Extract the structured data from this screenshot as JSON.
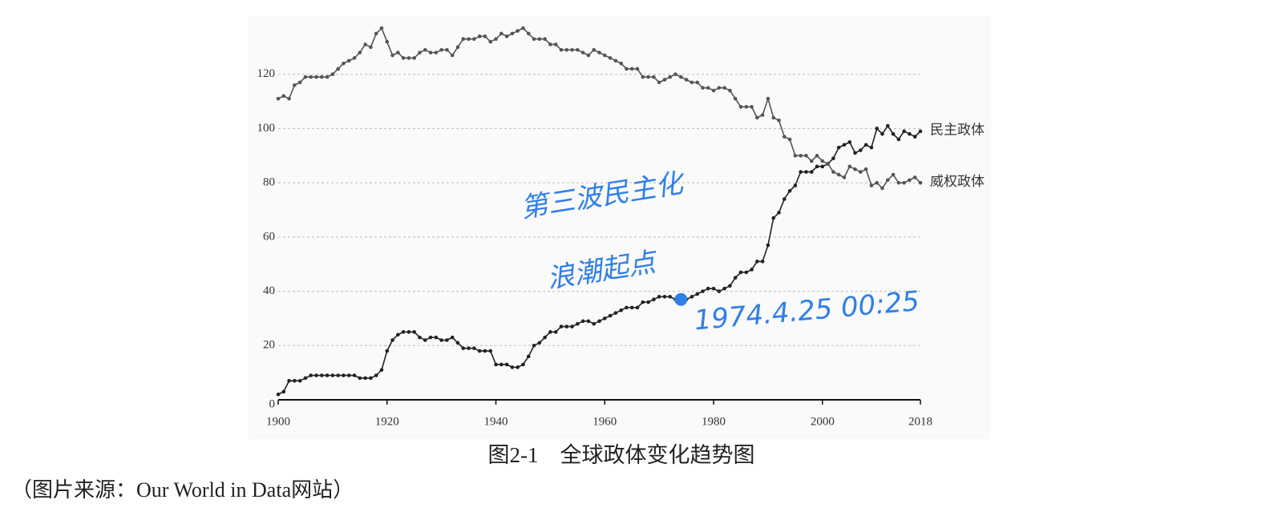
{
  "chart_data": {
    "type": "line",
    "x": [
      1900,
      1901,
      1902,
      1903,
      1904,
      1905,
      1906,
      1907,
      1908,
      1909,
      1910,
      1911,
      1912,
      1913,
      1914,
      1915,
      1916,
      1917,
      1918,
      1919,
      1920,
      1921,
      1922,
      1923,
      1924,
      1925,
      1926,
      1927,
      1928,
      1929,
      1930,
      1931,
      1932,
      1933,
      1934,
      1935,
      1936,
      1937,
      1938,
      1939,
      1940,
      1941,
      1942,
      1943,
      1944,
      1945,
      1946,
      1947,
      1948,
      1949,
      1950,
      1951,
      1952,
      1953,
      1954,
      1955,
      1956,
      1957,
      1958,
      1959,
      1960,
      1961,
      1962,
      1963,
      1964,
      1965,
      1966,
      1967,
      1968,
      1969,
      1970,
      1971,
      1972,
      1973,
      1974,
      1975,
      1976,
      1977,
      1978,
      1979,
      1980,
      1981,
      1982,
      1983,
      1984,
      1985,
      1986,
      1987,
      1988,
      1989,
      1990,
      1991,
      1992,
      1993,
      1994,
      1995,
      1996,
      1997,
      1998,
      1999,
      2000,
      2001,
      2002,
      2003,
      2004,
      2005,
      2006,
      2007,
      2008,
      2009,
      2010,
      2011,
      2012,
      2013,
      2014,
      2015,
      2016,
      2017,
      2018
    ],
    "series": [
      {
        "name": "民主政体",
        "color": "#222222",
        "values": [
          2,
          3,
          7,
          7,
          7,
          8,
          9,
          9,
          9,
          9,
          9,
          9,
          9,
          9,
          9,
          8,
          8,
          8,
          9,
          11,
          18,
          22,
          24,
          25,
          25,
          25,
          23,
          22,
          23,
          23,
          22,
          22,
          23,
          21,
          19,
          19,
          19,
          18,
          18,
          18,
          13,
          13,
          13,
          12,
          12,
          13,
          16,
          20,
          21,
          23,
          25,
          25,
          27,
          27,
          27,
          28,
          29,
          29,
          28,
          29,
          30,
          31,
          32,
          33,
          34,
          34,
          34,
          36,
          36,
          37,
          38,
          38,
          38,
          37,
          38,
          37,
          38,
          39,
          40,
          41,
          41,
          40,
          41,
          42,
          45,
          47,
          47,
          48,
          51,
          51,
          57,
          67,
          69,
          74,
          77,
          79,
          84,
          84,
          84,
          86,
          86,
          87,
          89,
          93,
          94,
          95,
          91,
          92,
          94,
          93,
          100,
          98,
          101,
          98,
          96,
          99,
          98,
          97,
          99
        ]
      },
      {
        "name": "威权政体",
        "color": "#555555",
        "values": [
          111,
          112,
          111,
          116,
          117,
          119,
          119,
          119,
          119,
          119,
          120,
          122,
          124,
          125,
          126,
          128,
          131,
          130,
          135,
          137,
          132,
          127,
          128,
          126,
          126,
          126,
          128,
          129,
          128,
          128,
          129,
          129,
          127,
          130,
          133,
          133,
          133,
          134,
          134,
          132,
          133,
          135,
          134,
          135,
          136,
          137,
          135,
          133,
          133,
          133,
          131,
          131,
          129,
          129,
          129,
          129,
          128,
          127,
          129,
          128,
          127,
          126,
          125,
          124,
          122,
          122,
          122,
          119,
          119,
          119,
          117,
          118,
          119,
          120,
          119,
          118,
          117,
          117,
          115,
          115,
          114,
          115,
          115,
          114,
          111,
          108,
          108,
          108,
          104,
          105,
          111,
          104,
          103,
          97,
          96,
          90,
          90,
          90,
          88,
          90,
          88,
          87,
          84,
          83,
          82,
          86,
          85,
          84,
          85,
          79,
          80,
          78,
          81,
          83,
          80,
          80,
          81,
          82,
          80
        ]
      }
    ],
    "xlim": [
      1900,
      2018
    ],
    "xticks": [
      1900,
      1920,
      1940,
      1960,
      1980,
      2000,
      2018
    ],
    "ylim": [
      0,
      140
    ],
    "yticks": [
      0,
      20,
      40,
      60,
      80,
      100,
      120
    ],
    "grid": true,
    "caption": "图2-1　全球政体变化趋势图",
    "source": "（图片来源：Our World in Data网站）",
    "annotations": [
      {
        "text": "第三波民主化"
      },
      {
        "text": "浪潮起点"
      },
      {
        "text": "1974.4.25  00:25",
        "x": 1974,
        "y": 37
      }
    ],
    "annotation_color": "#2f7fe8"
  }
}
